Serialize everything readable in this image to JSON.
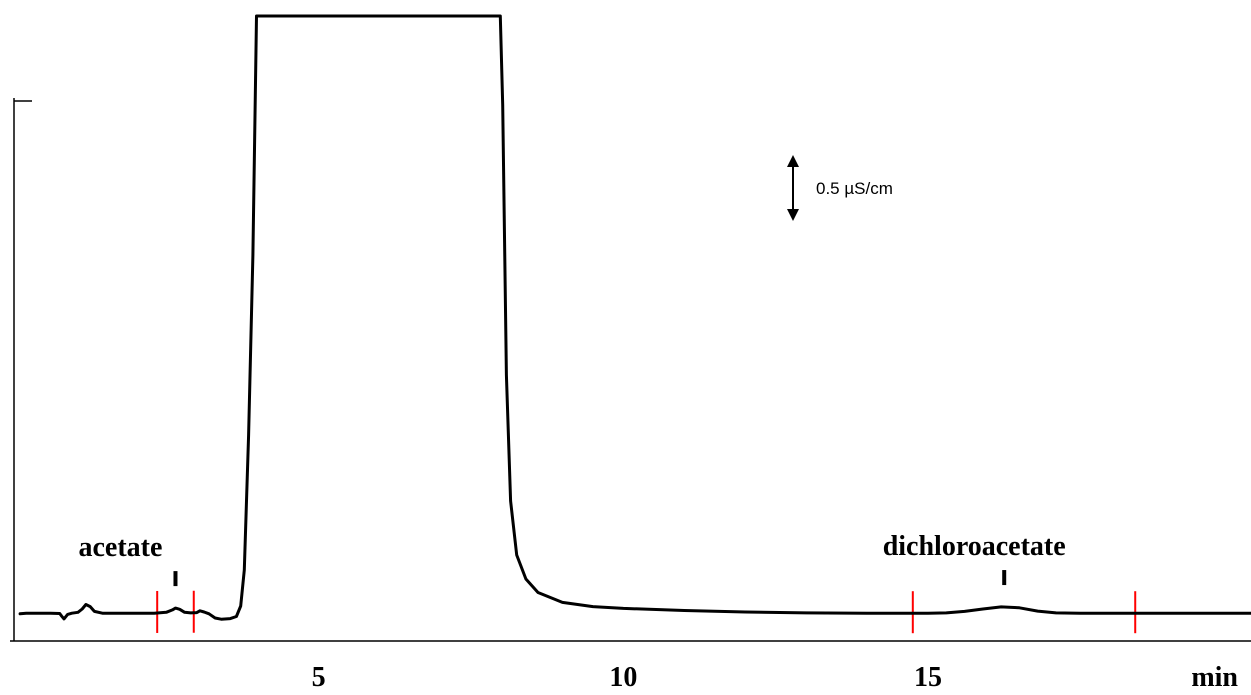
{
  "chart_data": {
    "type": "line",
    "title": "",
    "xlabel": "min",
    "ylabel": "",
    "xlim": [
      0,
      20.3
    ],
    "x_ticks": [
      {
        "value": 5,
        "label": "5"
      },
      {
        "value": 10,
        "label": "10"
      },
      {
        "value": 15,
        "label": "15"
      }
    ],
    "grid": false,
    "legend": "none",
    "trace_color": "#000000",
    "integration_color": "#ff0000",
    "series": [
      {
        "points": [
          [
            0.1,
            0.04
          ],
          [
            0.2,
            0.06
          ],
          [
            0.6,
            0.06
          ],
          [
            0.75,
            0.05
          ],
          [
            0.78,
            -0.03
          ],
          [
            0.82,
            -0.13
          ],
          [
            0.88,
            0.02
          ],
          [
            0.95,
            0.06
          ],
          [
            1.05,
            0.09
          ],
          [
            1.12,
            0.2
          ],
          [
            1.18,
            0.35
          ],
          [
            1.25,
            0.28
          ],
          [
            1.32,
            0.12
          ],
          [
            1.45,
            0.06
          ],
          [
            2.0,
            0.06
          ],
          [
            2.3,
            0.06
          ],
          [
            2.5,
            0.09
          ],
          [
            2.6,
            0.17
          ],
          [
            2.65,
            0.23
          ],
          [
            2.72,
            0.19
          ],
          [
            2.8,
            0.09
          ],
          [
            2.9,
            0.07
          ],
          [
            3.0,
            0.08
          ],
          [
            3.05,
            0.14
          ],
          [
            3.12,
            0.1
          ],
          [
            3.2,
            0.04
          ],
          [
            3.3,
            -0.1
          ],
          [
            3.4,
            -0.14
          ],
          [
            3.55,
            -0.12
          ],
          [
            3.65,
            -0.05
          ],
          [
            3.72,
            0.3
          ],
          [
            3.78,
            1.5
          ],
          [
            3.85,
            6.0
          ],
          [
            3.92,
            12.0
          ],
          [
            3.98,
            20.5
          ],
          [
            4.0,
            26
          ],
          [
            4.02,
            30
          ],
          [
            7.96,
            30
          ],
          [
            7.98,
            26
          ],
          [
            8.02,
            17.0
          ],
          [
            8.08,
            8.0
          ],
          [
            8.15,
            3.8
          ],
          [
            8.25,
            2.0
          ],
          [
            8.4,
            1.2
          ],
          [
            8.6,
            0.75
          ],
          [
            9.0,
            0.42
          ],
          [
            9.5,
            0.28
          ],
          [
            10.0,
            0.22
          ],
          [
            11.0,
            0.15
          ],
          [
            12.0,
            0.1
          ],
          [
            13.0,
            0.07
          ],
          [
            14.0,
            0.06
          ],
          [
            15.0,
            0.06
          ],
          [
            15.3,
            0.07
          ],
          [
            15.6,
            0.12
          ],
          [
            15.9,
            0.2
          ],
          [
            16.2,
            0.27
          ],
          [
            16.5,
            0.24
          ],
          [
            16.8,
            0.13
          ],
          [
            17.1,
            0.07
          ],
          [
            17.5,
            0.06
          ],
          [
            18.5,
            0.06
          ],
          [
            20.3,
            0.06
          ]
        ]
      }
    ],
    "integration_ticks_x": [
      2.35,
      2.95,
      14.75,
      18.4
    ],
    "peaks": [
      {
        "name": "acetate",
        "x": 2.65
      },
      {
        "name": "dichloroacetate",
        "x": 16.25
      }
    ],
    "scale_bar": {
      "label": "0.5 µS/cm",
      "value": 2.2
    }
  }
}
